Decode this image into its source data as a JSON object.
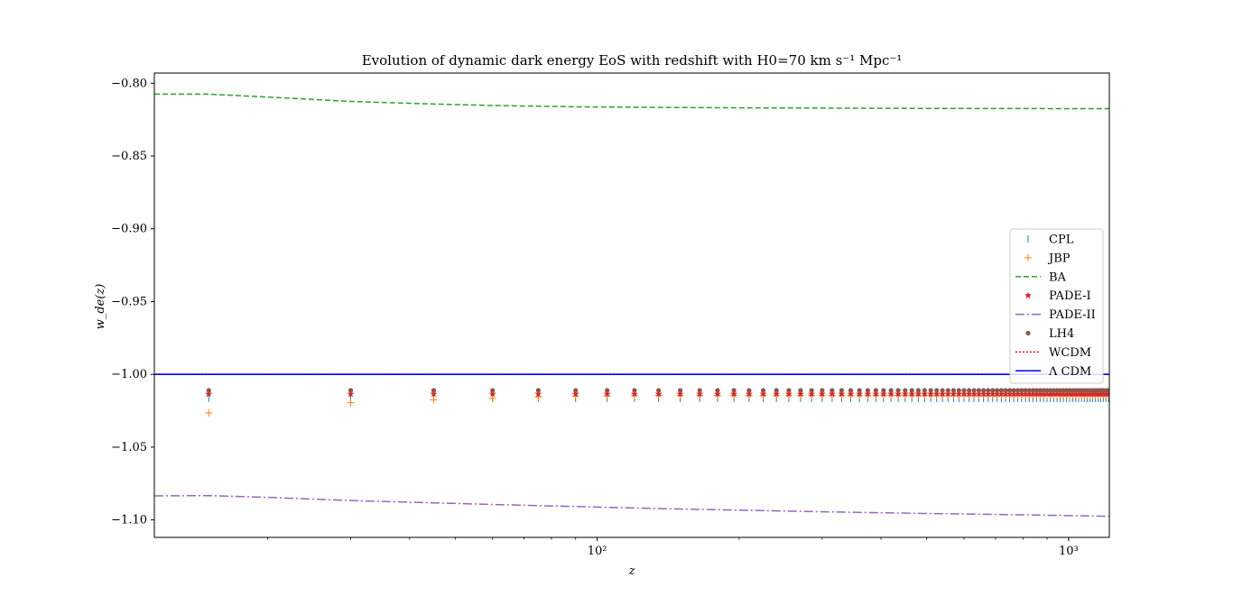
{
  "chart_data": {
    "type": "line",
    "title": "Evolution of dynamic dark energy EoS with redshift with H0=70 km s⁻¹ Mpc⁻¹",
    "xlabel": "z",
    "ylabel": "w_de(z)",
    "xscale": "log",
    "xlim": [
      11.5,
      1220
    ],
    "ylim": [
      -1.112,
      -0.793
    ],
    "grid": false,
    "legend_position": "center-right",
    "x_ticks": [
      {
        "value": 100,
        "label": "10²"
      },
      {
        "value": 1000,
        "label": "10³"
      }
    ],
    "y_ticks": [
      {
        "value": -0.8,
        "label": "−0.80"
      },
      {
        "value": -0.85,
        "label": "−0.85"
      },
      {
        "value": -0.9,
        "label": "−0.90"
      },
      {
        "value": -0.95,
        "label": "−0.95"
      },
      {
        "value": -1.0,
        "label": "−1.00"
      },
      {
        "value": -1.05,
        "label": "−1.05"
      },
      {
        "value": -1.1,
        "label": "−1.10"
      }
    ],
    "marker_z": [
      15,
      30,
      45,
      60,
      75,
      90,
      105,
      120,
      135,
      150,
      165,
      180,
      195,
      210,
      225,
      240,
      255,
      270,
      285,
      300,
      315,
      330,
      345,
      360,
      375,
      390,
      405,
      420,
      435,
      450,
      465,
      480,
      495,
      510,
      525,
      540,
      555,
      570,
      585,
      600,
      615,
      630,
      645,
      660,
      675,
      690,
      705,
      720,
      735,
      750,
      765,
      780,
      795,
      810,
      825,
      840,
      855,
      870,
      885,
      900,
      915,
      930,
      945,
      960,
      975,
      990,
      1005,
      1020,
      1035,
      1050,
      1065,
      1080,
      1095,
      1110,
      1125,
      1140,
      1155,
      1170,
      1185,
      1200,
      1215
    ],
    "series": [
      {
        "name": "CPL",
        "kind": "marker",
        "marker": "vline",
        "color": "#1f77b4",
        "y_constant": -1.0165
      },
      {
        "name": "JBP",
        "kind": "marker",
        "marker": "plus",
        "color": "#ff7f0e",
        "x": [
          15,
          30,
          45,
          60,
          75,
          90,
          105,
          120
        ],
        "y": [
          -1.0265,
          -1.0195,
          -1.0175,
          -1.0165,
          -1.0155,
          -1.015,
          -1.0148,
          -1.0146
        ],
        "y_tail": -1.0145
      },
      {
        "name": "BA",
        "kind": "line",
        "dash": "6,3",
        "color": "#2ca02c",
        "x": [
          11.5,
          15,
          20,
          30,
          45,
          60,
          75,
          90,
          120,
          150,
          200,
          300,
          500,
          1220
        ],
        "y": [
          -0.8075,
          -0.8075,
          -0.8095,
          -0.8125,
          -0.8143,
          -0.8153,
          -0.8158,
          -0.8162,
          -0.8165,
          -0.8167,
          -0.8169,
          -0.8171,
          -0.8173,
          -0.8175
        ]
      },
      {
        "name": "PADE-I",
        "kind": "marker",
        "marker": "star",
        "color": "#d62728",
        "y_constant": -1.0135
      },
      {
        "name": "PADE-II",
        "kind": "line",
        "dash": "10,3,2,3",
        "color": "#9467bd",
        "x": [
          11.5,
          15,
          20,
          30,
          45,
          60,
          75,
          90,
          120,
          150,
          200,
          300,
          500,
          800,
          1220
        ],
        "y": [
          -1.0835,
          -1.0833,
          -1.0845,
          -1.0867,
          -1.0883,
          -1.0894,
          -1.0902,
          -1.0908,
          -1.0918,
          -1.0925,
          -1.0933,
          -1.0944,
          -1.0956,
          -1.0965,
          -1.0975
        ]
      },
      {
        "name": "LH4",
        "kind": "marker",
        "marker": "dot",
        "color": "#8c564b",
        "y_constant": -1.011
      },
      {
        "name": "WCDM",
        "kind": "line",
        "dash": "2,2",
        "color": "#e8120b",
        "x": [
          11.5,
          1220
        ],
        "y": [
          -1.0,
          -1.0
        ]
      },
      {
        "name": "Λ CDM",
        "kind": "line",
        "dash": "",
        "color": "#0000ff",
        "x": [
          11.5,
          1220
        ],
        "y": [
          -1.0,
          -1.0
        ]
      }
    ]
  }
}
